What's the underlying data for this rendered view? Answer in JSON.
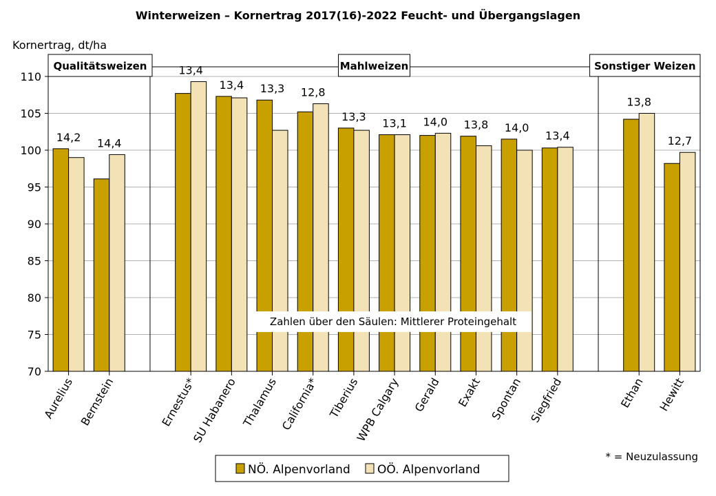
{
  "chart_data": {
    "type": "bar",
    "title": "Winterweizen – Kornertrag 2017(16)-2022 Feucht- und Übergangslagen",
    "ylabel": "Kornertrag, dt/ha",
    "ylim": [
      70,
      110
    ],
    "yticks": [
      70,
      75,
      80,
      85,
      90,
      95,
      100,
      105,
      110
    ],
    "grid": true,
    "legend_position": "bottom",
    "groups": [
      {
        "label": "Qualitätsweizen",
        "categories": [
          "Aurelius",
          "Bernstein"
        ]
      },
      {
        "label": "Mahlweizen",
        "categories": [
          "Ernestus*",
          "SU Habanero",
          "Thalamus",
          "California*",
          "Tiberius",
          "WPB Calgary",
          "Gerald",
          "Exakt",
          "Spontan",
          "Siegfried"
        ]
      },
      {
        "label": "Sonstiger Weizen",
        "categories": [
          "Ethan",
          "Hewitt"
        ]
      }
    ],
    "categories": [
      "Aurelius",
      "Bernstein",
      "Ernestus*",
      "SU Habanero",
      "Thalamus",
      "California*",
      "Tiberius",
      "WPB Calgary",
      "Gerald",
      "Exakt",
      "Spontan",
      "Siegfried",
      "Ethan",
      "Hewitt"
    ],
    "series": [
      {
        "name": "NÖ. Alpenvorland",
        "color": "#c8a000",
        "values": [
          100.2,
          96.1,
          107.7,
          107.3,
          106.8,
          105.2,
          103.0,
          102.1,
          102.0,
          101.9,
          101.5,
          100.3,
          104.2,
          98.2
        ]
      },
      {
        "name": "OÖ. Alpenvorland",
        "color": "#f2e2b6",
        "values": [
          99.0,
          99.4,
          109.3,
          107.1,
          102.7,
          106.3,
          102.7,
          102.1,
          102.3,
          100.6,
          100.0,
          100.4,
          105.0,
          99.7
        ]
      }
    ],
    "protein_labels": [
      "14,2",
      "14,4",
      "13,4",
      "13,4",
      "13,3",
      "12,8",
      "13,3",
      "13,1",
      "14,0",
      "13,8",
      "14,0",
      "13,4",
      "13,8",
      "12,7"
    ],
    "annotation": "Zahlen über den Säulen: Mittlerer Proteingehalt",
    "footnote": "* = Neuzulassung"
  }
}
